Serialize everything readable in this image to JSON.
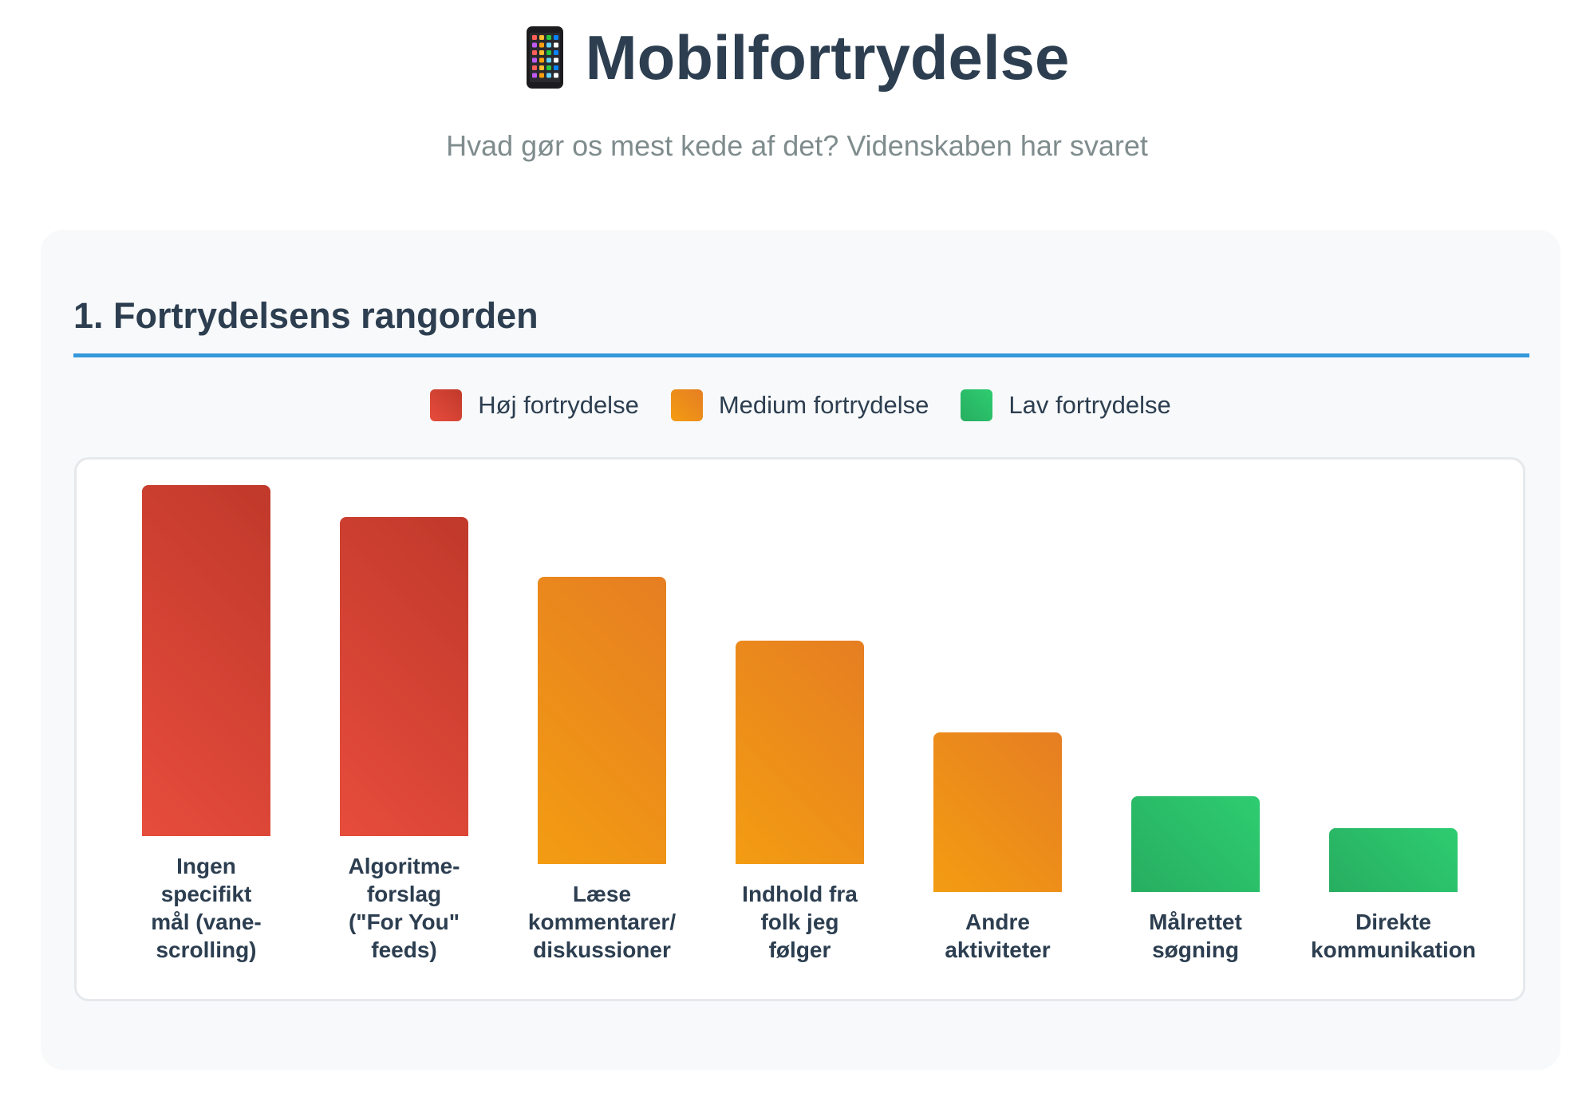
{
  "header": {
    "title": "Mobilfortrydelse",
    "icon": "mobile-phone-icon",
    "subtitle": "Hvad gør os mest kede af det? Videnskaben har svaret"
  },
  "section": {
    "heading": "1. Fortrydelsens rangorden"
  },
  "colors": {
    "high": [
      "#e74c3c",
      "#c0392b"
    ],
    "medium": [
      "#f39c12",
      "#e67e22"
    ],
    "low": [
      "#27ae60",
      "#2ecc71"
    ],
    "accent": "#3498db",
    "text": "#2c3e50"
  },
  "chart_data": {
    "type": "bar",
    "title": "1. Fortrydelsens rangorden",
    "legend": [
      {
        "key": "high",
        "label": "Høj fortrydelse"
      },
      {
        "key": "medium",
        "label": "Medium fortrydelse"
      },
      {
        "key": "low",
        "label": "Lav fortrydelse"
      }
    ],
    "legend_position": "top-center",
    "categories": [
      "Ingen specifikt mål (vane-scrolling)",
      "Algoritme-forslag (\"For You\" feeds)",
      "Læse kommentarer/ diskussioner",
      "Indhold fra folk jeg følger",
      "Andre aktiviteter",
      "Målrettet søgning",
      "Direkte kommunikation"
    ],
    "values": [
      220,
      200,
      180,
      140,
      100,
      60,
      40
    ],
    "levels": [
      "high",
      "high",
      "medium",
      "medium",
      "medium",
      "low",
      "low"
    ],
    "xlabel": "",
    "ylabel": "",
    "ylim": [
      0,
      220
    ],
    "grid": false
  }
}
